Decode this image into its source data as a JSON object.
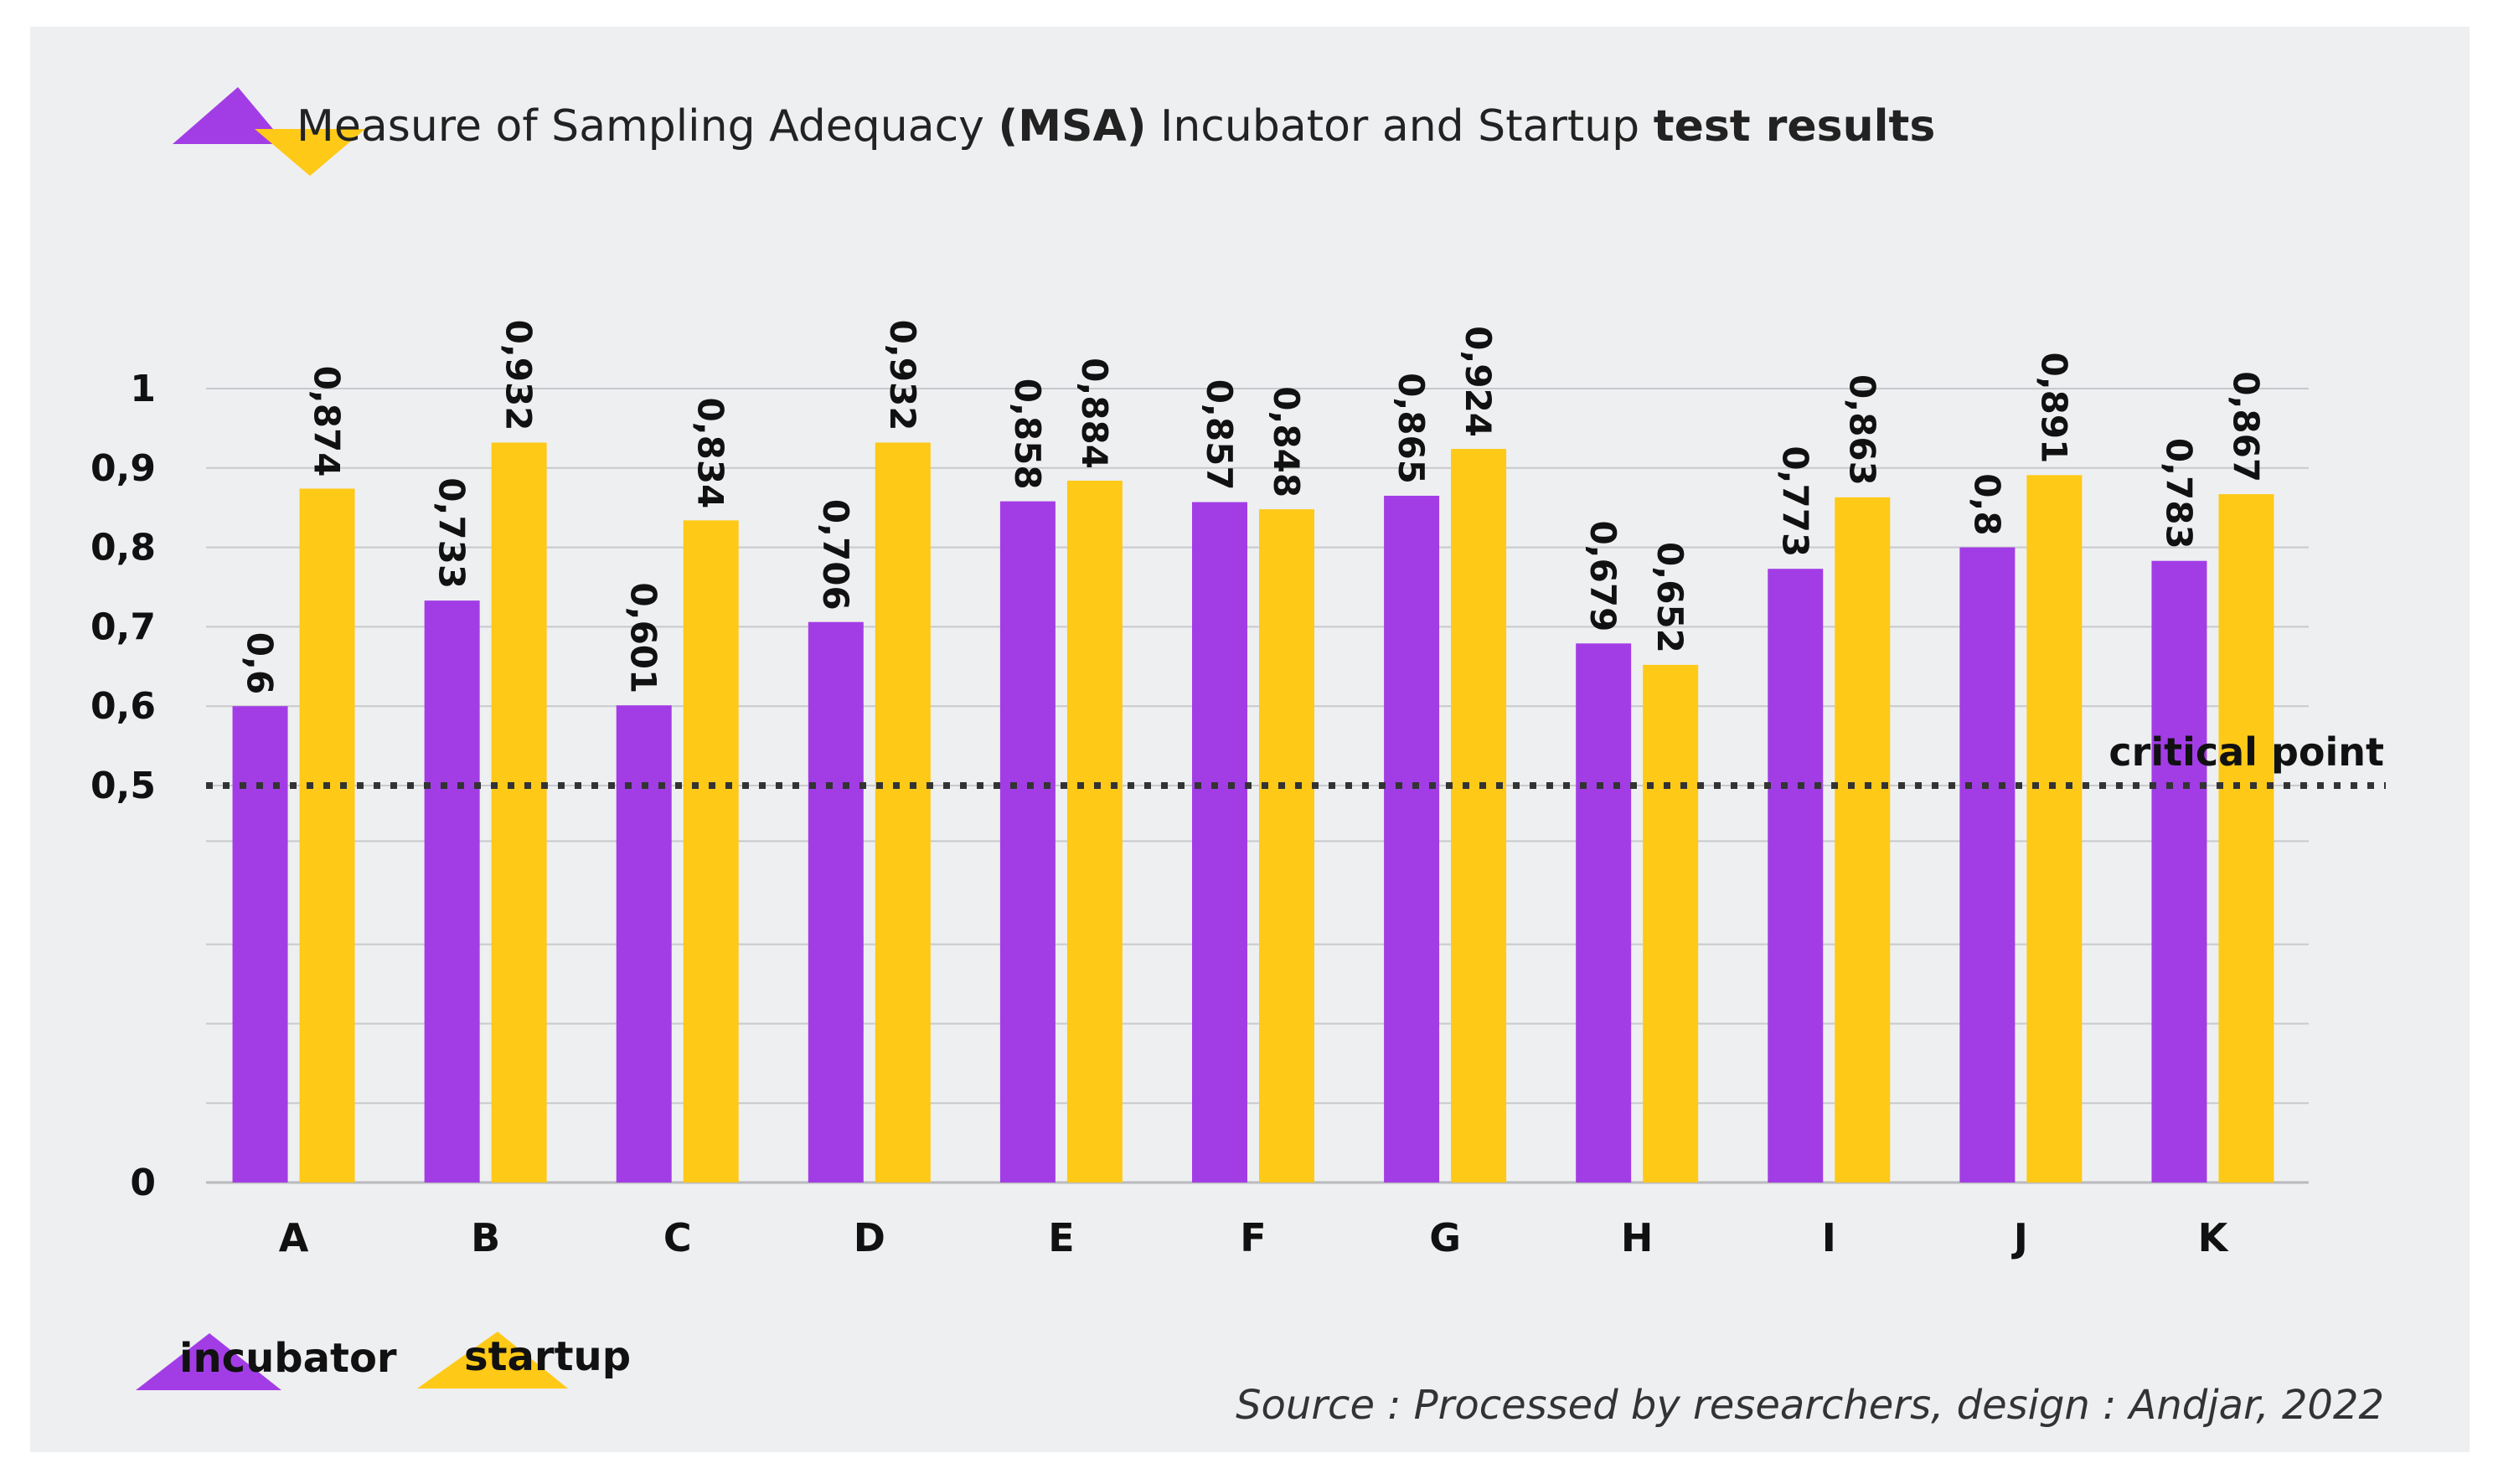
{
  "chart_data": {
    "type": "bar",
    "title_parts": [
      {
        "text": "Measure of Sampling Adequacy ",
        "bold": false
      },
      {
        "text": "(MSA)",
        "bold": true
      },
      {
        "text": " Incubator and Startup ",
        "bold": false
      },
      {
        "text": "test results",
        "bold": true
      }
    ],
    "categories": [
      "A",
      "B",
      "C",
      "D",
      "E",
      "F",
      "G",
      "H",
      "I",
      "J",
      "K"
    ],
    "series": [
      {
        "name": "incubator",
        "color": "#a23de6",
        "values": [
          0.6,
          0.733,
          0.601,
          0.706,
          0.858,
          0.857,
          0.865,
          0.679,
          0.773,
          0.8,
          0.783
        ],
        "labels": [
          "0,6",
          "0,733",
          "0,601",
          "0,706",
          "0,858",
          "0,857",
          "0,865",
          "0,679",
          "0,773",
          "0,8",
          "0,783"
        ]
      },
      {
        "name": "startup",
        "color": "#fec917",
        "values": [
          0.874,
          0.932,
          0.834,
          0.932,
          0.884,
          0.848,
          0.924,
          0.652,
          0.863,
          0.891,
          0.867
        ],
        "labels": [
          "0,874",
          "0,932",
          "0,834",
          "0,932",
          "0,884",
          "0,848",
          "0,924",
          "0,652",
          "0,863",
          "0,891",
          "0,867"
        ]
      }
    ],
    "y_ticks": [
      {
        "value": 0,
        "label": "0"
      },
      {
        "value": 0.5,
        "label": "0,5"
      },
      {
        "value": 0.6,
        "label": "0,6"
      },
      {
        "value": 0.7,
        "label": "0,7"
      },
      {
        "value": 0.8,
        "label": "0,8"
      },
      {
        "value": 0.9,
        "label": "0,9"
      },
      {
        "value": 1.0,
        "label": "1"
      }
    ],
    "gridlines": [
      0.1,
      0.2,
      0.3,
      0.43,
      0.5,
      0.6,
      0.7,
      0.8,
      0.9,
      1.0
    ],
    "ylim": [
      0,
      1
    ],
    "reference_line": {
      "value": 0.5,
      "label": "critical point",
      "style": "dotted"
    },
    "legend": {
      "placement": "bottom-left",
      "entries": [
        "incubator",
        "startup"
      ]
    },
    "source": "Source : Processed by researchers, design : Andjar, 2022"
  }
}
